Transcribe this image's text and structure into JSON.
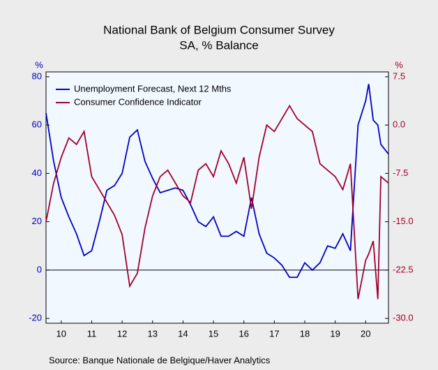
{
  "chart_data": {
    "type": "line",
    "title": "National Bank of Belgium Consumer Survey",
    "subtitle": "SA, % Balance",
    "ylabel": "%",
    "y2label": "%",
    "source": "Source:  Banque Nationale de Belgique/Haver Analytics",
    "x": [
      2010.0,
      2010.25,
      2010.5,
      2010.75,
      2011.0,
      2011.25,
      2011.5,
      2011.75,
      2012.0,
      2012.25,
      2012.5,
      2012.75,
      2013.0,
      2013.25,
      2013.5,
      2013.75,
      2014.0,
      2014.25,
      2014.5,
      2014.75,
      2015.0,
      2015.25,
      2015.5,
      2015.75,
      2016.0,
      2016.25,
      2016.5,
      2016.75,
      2017.0,
      2017.25,
      2017.5,
      2017.75,
      2018.0,
      2018.25,
      2018.5,
      2018.75,
      2019.0,
      2019.25,
      2019.5,
      2019.75,
      2020.0,
      2020.25,
      2020.5,
      2020.6,
      2020.75,
      2020.9,
      2021.0,
      2021.25
    ],
    "series": [
      {
        "name": "Unemployment Forecast, Next 12 Mths",
        "color": "#0000c0",
        "axis": "y",
        "values": [
          65,
          45,
          30,
          22,
          15,
          6,
          8,
          20,
          33,
          35,
          40,
          55,
          58,
          45,
          38,
          32,
          33,
          34,
          33,
          27,
          20,
          18,
          22,
          14,
          14,
          16,
          14,
          30,
          15,
          7,
          5,
          2,
          -3,
          -3,
          3,
          0,
          3,
          10,
          9,
          15,
          8,
          60,
          70,
          77,
          62,
          60,
          52,
          48
        ]
      },
      {
        "name": "Consumer Confidence Indicator",
        "color": "#a0002a",
        "axis": "y2",
        "values": [
          -15,
          -9,
          -5,
          -2,
          -3,
          -1,
          -8,
          -10,
          -12,
          -14,
          -17,
          -25,
          -23,
          -16,
          -11,
          -8,
          -7,
          -9,
          -11,
          -12,
          -7,
          -6,
          -8,
          -4,
          -6,
          -9,
          -5,
          -13,
          -5,
          0,
          -1,
          1,
          3,
          1,
          0,
          -1,
          -6,
          -7,
          -8,
          -10,
          -6,
          -27,
          -21,
          -20,
          -18,
          -27,
          -8,
          -9
        ]
      }
    ],
    "xlim": [
      2010,
      2021.25
    ],
    "xticks": [
      {
        "value": 2010.5,
        "label": "10"
      },
      {
        "value": 2011.5,
        "label": "11"
      },
      {
        "value": 2012.5,
        "label": "12"
      },
      {
        "value": 2013.5,
        "label": "13"
      },
      {
        "value": 2014.5,
        "label": "14"
      },
      {
        "value": 2015.5,
        "label": "15"
      },
      {
        "value": 2016.5,
        "label": "16"
      },
      {
        "value": 2017.5,
        "label": "17"
      },
      {
        "value": 2018.5,
        "label": "18"
      },
      {
        "value": 2019.5,
        "label": "19"
      },
      {
        "value": 2020.5,
        "label": "20"
      }
    ],
    "ylim": [
      -22,
      82
    ],
    "yticks": [
      -20,
      0,
      20,
      40,
      60,
      80
    ],
    "y2lim": [
      -30.75,
      8.25
    ],
    "y2ticks": [
      -30.0,
      -22.5,
      -15.0,
      -7.5,
      0.0,
      7.5
    ],
    "y2tick_labels": [
      "-30.0",
      "-22.5",
      "-15.0",
      "-7.5",
      "0.0",
      "7.5"
    ],
    "legend": "upper left"
  }
}
